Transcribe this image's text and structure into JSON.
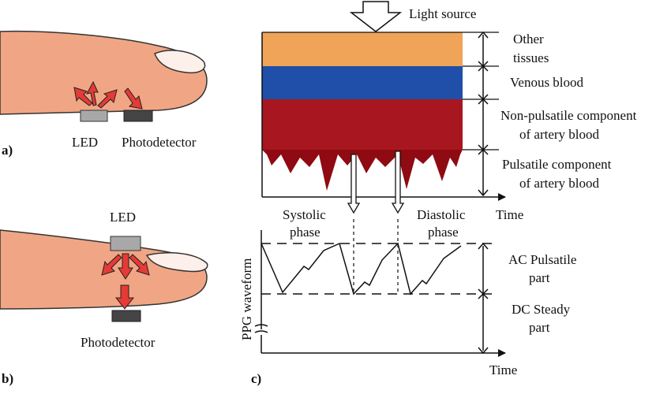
{
  "panel_a": {
    "tag": "a)",
    "led_label": "LED",
    "detector_label": "Photodetector"
  },
  "panel_b": {
    "tag": "b)",
    "led_label": "LED",
    "detector_label": "Photodetector"
  },
  "panel_c": {
    "tag": "c)",
    "light_source_label": "Light source",
    "layers": [
      {
        "line1": "Other",
        "line2": "tissues",
        "color": "#EFA458"
      },
      {
        "line1": "Venous blood",
        "line2": "",
        "color": "#1F4FA8"
      },
      {
        "line1": "Non-pulsatile component",
        "line2": "of artery blood",
        "color": "#A8171F"
      },
      {
        "line1": "Pulsatile component",
        "line2": "of artery blood",
        "color": "#8F0A12"
      }
    ],
    "time_label_top": "Time",
    "systolic_line1": "Systolic",
    "systolic_line2": "phase",
    "diastolic_line1": "Diastolic",
    "diastolic_line2": "phase",
    "y_axis_label": "PPG waveform",
    "ac_line1": "AC Pulsatile",
    "ac_line2": "part",
    "dc_line1": "DC Steady",
    "dc_line2": "part",
    "time_label_bottom": "Time"
  },
  "colors": {
    "finger": "#F0A684",
    "finger_outline": "#333333",
    "nail": "#FDF0EA",
    "arrow_red": "#E53A36",
    "led_gray": "#A8A8A8",
    "detector_dark": "#444444"
  }
}
